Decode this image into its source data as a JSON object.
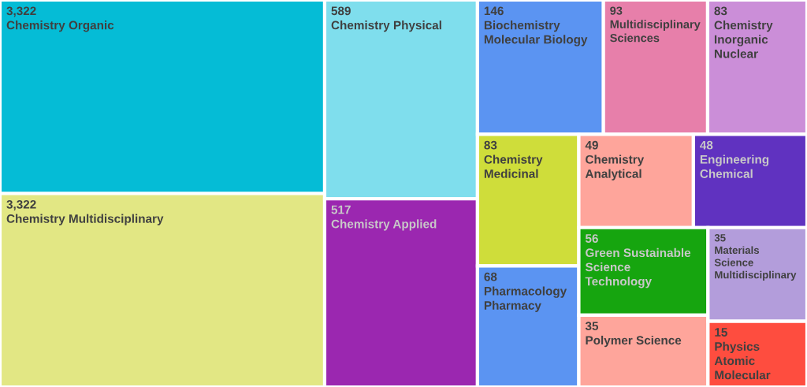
{
  "chart_data": {
    "type": "other",
    "categories": [
      "Chemistry Organic",
      "Chemistry Multidisciplinary",
      "Chemistry Physical",
      "Chemistry Applied",
      "Biochemistry Molecular Biology",
      "Multidisciplinary Sciences",
      "Chemistry Inorganic Nuclear",
      "Chemistry Medicinal",
      "Pharmacology Pharmacy",
      "Chemistry Analytical",
      "Engineering Chemical",
      "Green Sustainable Science Technology",
      "Polymer Science",
      "Materials Science Multidisciplinary",
      "Physics Atomic Molecular"
    ],
    "values": [
      3322,
      3322,
      589,
      517,
      146,
      93,
      83,
      83,
      68,
      49,
      48,
      56,
      35,
      35,
      15
    ],
    "value_labels": [
      "3,322",
      "3,322",
      "589",
      "517",
      "146",
      "93",
      "83",
      "83",
      "68",
      "49",
      "48",
      "56",
      "35",
      "35",
      "15"
    ],
    "colors": [
      "#05bcd6",
      "#e2e784",
      "#7fdeed",
      "#9b27b0",
      "#5b94f2",
      "#e77faa",
      "#cb8ed8",
      "#cfdd3a",
      "#5b94f2",
      "#fea59b",
      "#6032c0",
      "#16a50f",
      "#fea59b",
      "#b39ddb",
      "#fe4d3f"
    ]
  }
}
